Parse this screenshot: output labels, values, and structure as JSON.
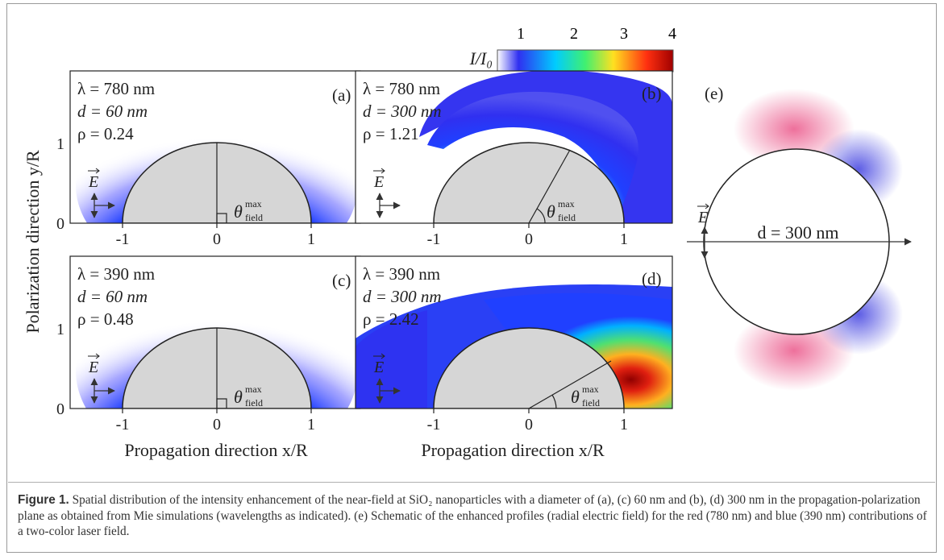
{
  "colorbar": {
    "label": "I/I₀",
    "ticks": [
      "1",
      "2",
      "3",
      "4"
    ],
    "colors": [
      "#ffffff",
      "#2020f0",
      "#00c8ff",
      "#30f080",
      "#ffe020",
      "#ff4010",
      "#a00000"
    ]
  },
  "axes": {
    "ylabel": "Polarization direction y/R",
    "xlabel": "Propagation direction x/R",
    "xticks": [
      "-1",
      "0",
      "1"
    ],
    "yticks": [
      "0",
      "1"
    ]
  },
  "panels": [
    {
      "id": "a",
      "tag": "(a)",
      "lambda": "λ = 780 nm",
      "d": "d = 60 nm",
      "rho": "ρ = 0.24",
      "theta": "θ",
      "theta_sup": "max",
      "theta_sub": "field",
      "angle_deg": 90
    },
    {
      "id": "b",
      "tag": "(b)",
      "lambda": "λ = 780 nm",
      "d": "d = 300 nm",
      "rho": "ρ = 1.21",
      "theta": "θ",
      "theta_sup": "max",
      "theta_sub": "field",
      "angle_deg": 70
    },
    {
      "id": "c",
      "tag": "(c)",
      "lambda": "λ = 390 nm",
      "d": "d = 60 nm",
      "rho": "ρ = 0.48",
      "theta": "θ",
      "theta_sup": "max",
      "theta_sub": "field",
      "angle_deg": 90
    },
    {
      "id": "d",
      "tag": "(d)",
      "lambda": "λ = 390 nm",
      "d": "d = 300 nm",
      "rho": "ρ = 2.42",
      "theta": "θ",
      "theta_sup": "max",
      "theta_sub": "field",
      "angle_deg": 30
    }
  ],
  "panel_e": {
    "tag": "(e)",
    "d_label": "d = 300 nm",
    "red_color": "#e8407a",
    "blue_color": "#5050e0"
  },
  "field_symbol": "E",
  "caption": {
    "label": "Figure 1.",
    "text": "Spatial distribution of the intensity enhancement of the near-field at SiO₂ nanoparticles with a diameter of (a), (c) 60 nm and (b), (d) 300 nm in the propagation-polarization plane as obtained from Mie simulations (wavelengths as indicated). (e) Schematic of the enhanced profiles (radial electric field) for the red (780 nm) and blue (390 nm) contributions of a two-color laser field."
  }
}
